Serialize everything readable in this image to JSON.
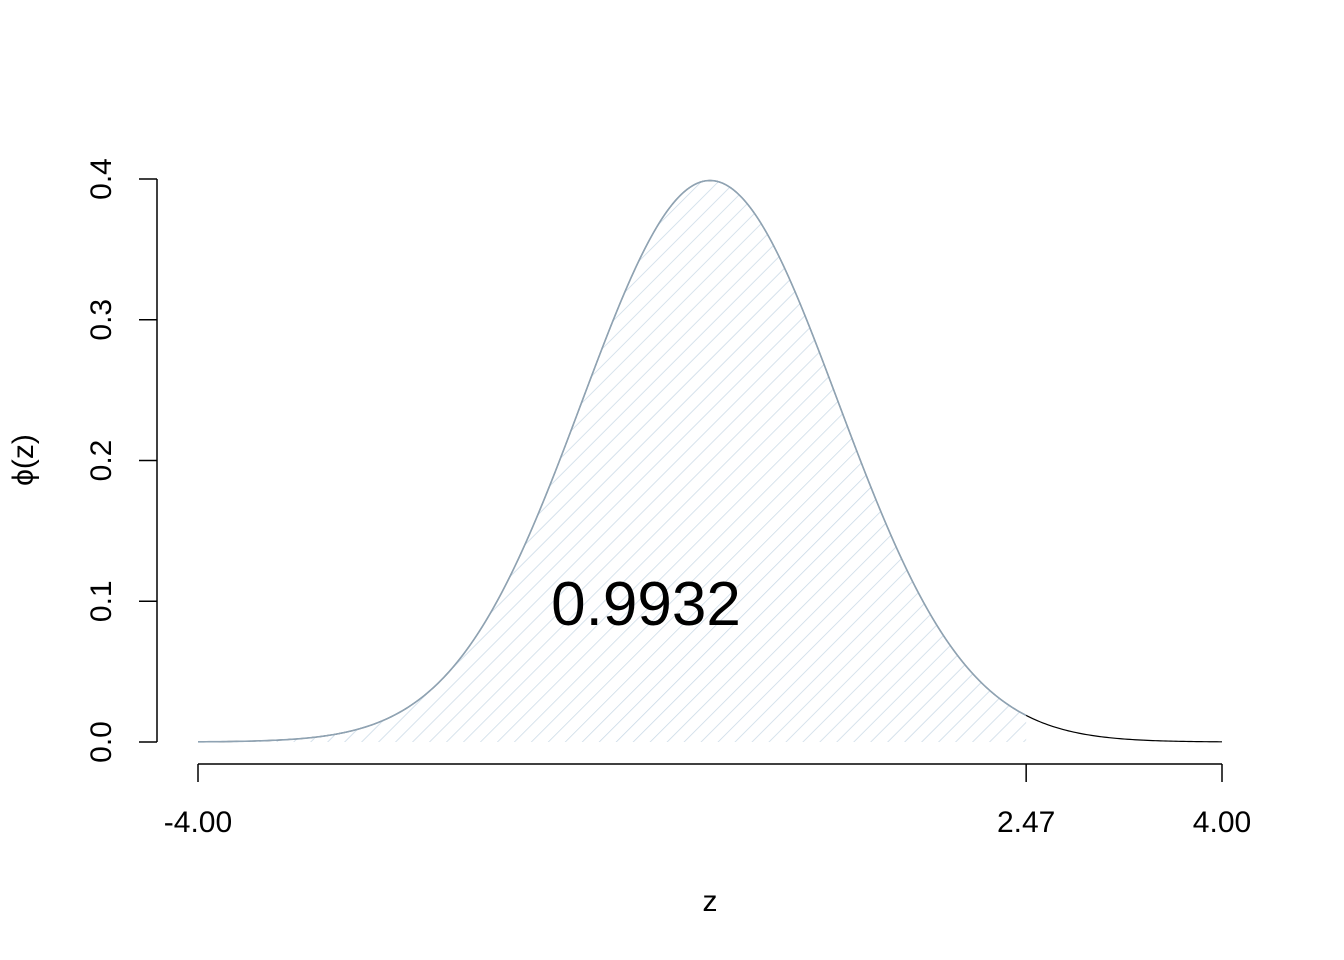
{
  "chart_data": {
    "type": "area",
    "title": "",
    "xlabel": "z",
    "ylabel": "ϕ(z)",
    "xlim": [
      -4,
      4
    ],
    "ylim": [
      0,
      0.4
    ],
    "y_ticks": [
      {
        "value": 0.0,
        "label": "0.0"
      },
      {
        "value": 0.1,
        "label": "0.1"
      },
      {
        "value": 0.2,
        "label": "0.2"
      },
      {
        "value": 0.3,
        "label": "0.3"
      },
      {
        "value": 0.4,
        "label": "0.4"
      }
    ],
    "x_ticks": [
      {
        "value": -4,
        "label": "-4.00"
      },
      {
        "value": 2.47,
        "label": "2.47"
      },
      {
        "value": 4,
        "label": "4.00"
      }
    ],
    "shaded_from": -4,
    "shaded_to": 2.47,
    "area_label": "0.9932",
    "curve": "standard normal density",
    "colors": {
      "curve": "#000000",
      "shade_edge": "#8fa3b3",
      "hatch": "#c9d9e6",
      "axis": "#000000"
    },
    "grid": false,
    "legend": "none"
  }
}
